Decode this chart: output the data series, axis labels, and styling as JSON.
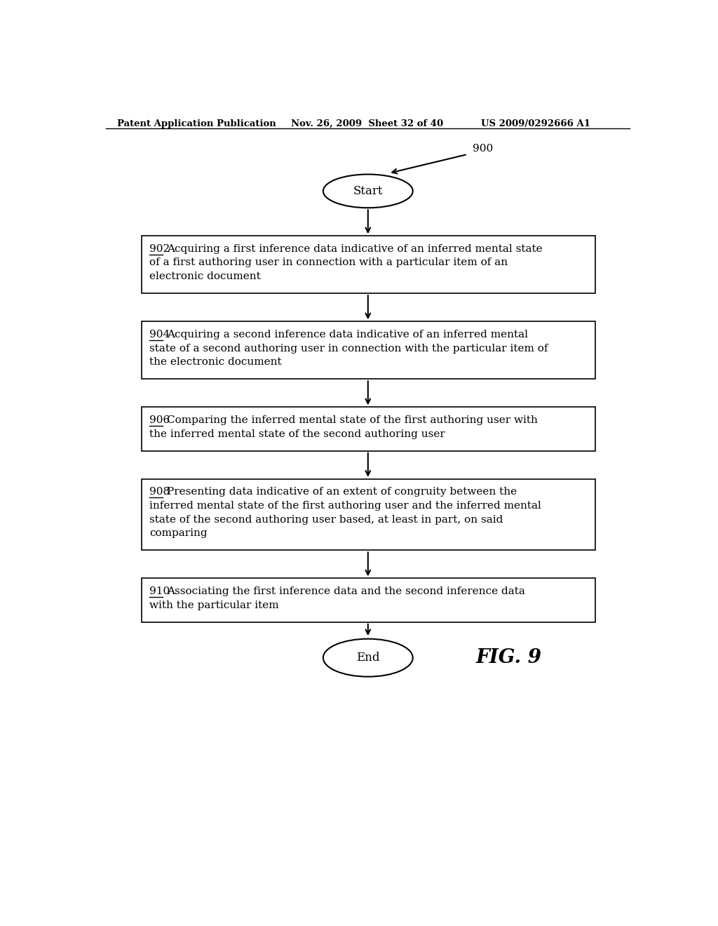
{
  "header_left": "Patent Application Publication",
  "header_middle": "Nov. 26, 2009  Sheet 32 of 40",
  "header_right": "US 2009/0292666 A1",
  "fig_label": "FIG. 9",
  "diagram_label": "900",
  "background_color": "#ffffff",
  "text_color": "#000000",
  "box_steps": [
    {
      "id": "902",
      "lines": [
        "Acquiring a first inference data indicative of an inferred mental state",
        "of a first authoring user in connection with a particular item of an",
        "electronic document"
      ]
    },
    {
      "id": "904",
      "lines": [
        "Acquiring a second inference data indicative of an inferred mental",
        "state of a second authoring user in connection with the particular item of",
        "the electronic document"
      ]
    },
    {
      "id": "906",
      "lines": [
        "Comparing the inferred mental state of the first authoring user with",
        "the inferred mental state of the second authoring user"
      ]
    },
    {
      "id": "908",
      "lines": [
        "Presenting data indicative of an extent of congruity between the",
        "inferred mental state of the first authoring user and the inferred mental",
        "state of the second authoring user based, at least in part, on said",
        "comparing"
      ]
    },
    {
      "id": "910",
      "lines": [
        "Associating the first inference data and the second inference data",
        "with the particular item"
      ]
    }
  ],
  "start_label": "Start",
  "end_label": "End",
  "page_width": 10.24,
  "page_height": 13.2
}
